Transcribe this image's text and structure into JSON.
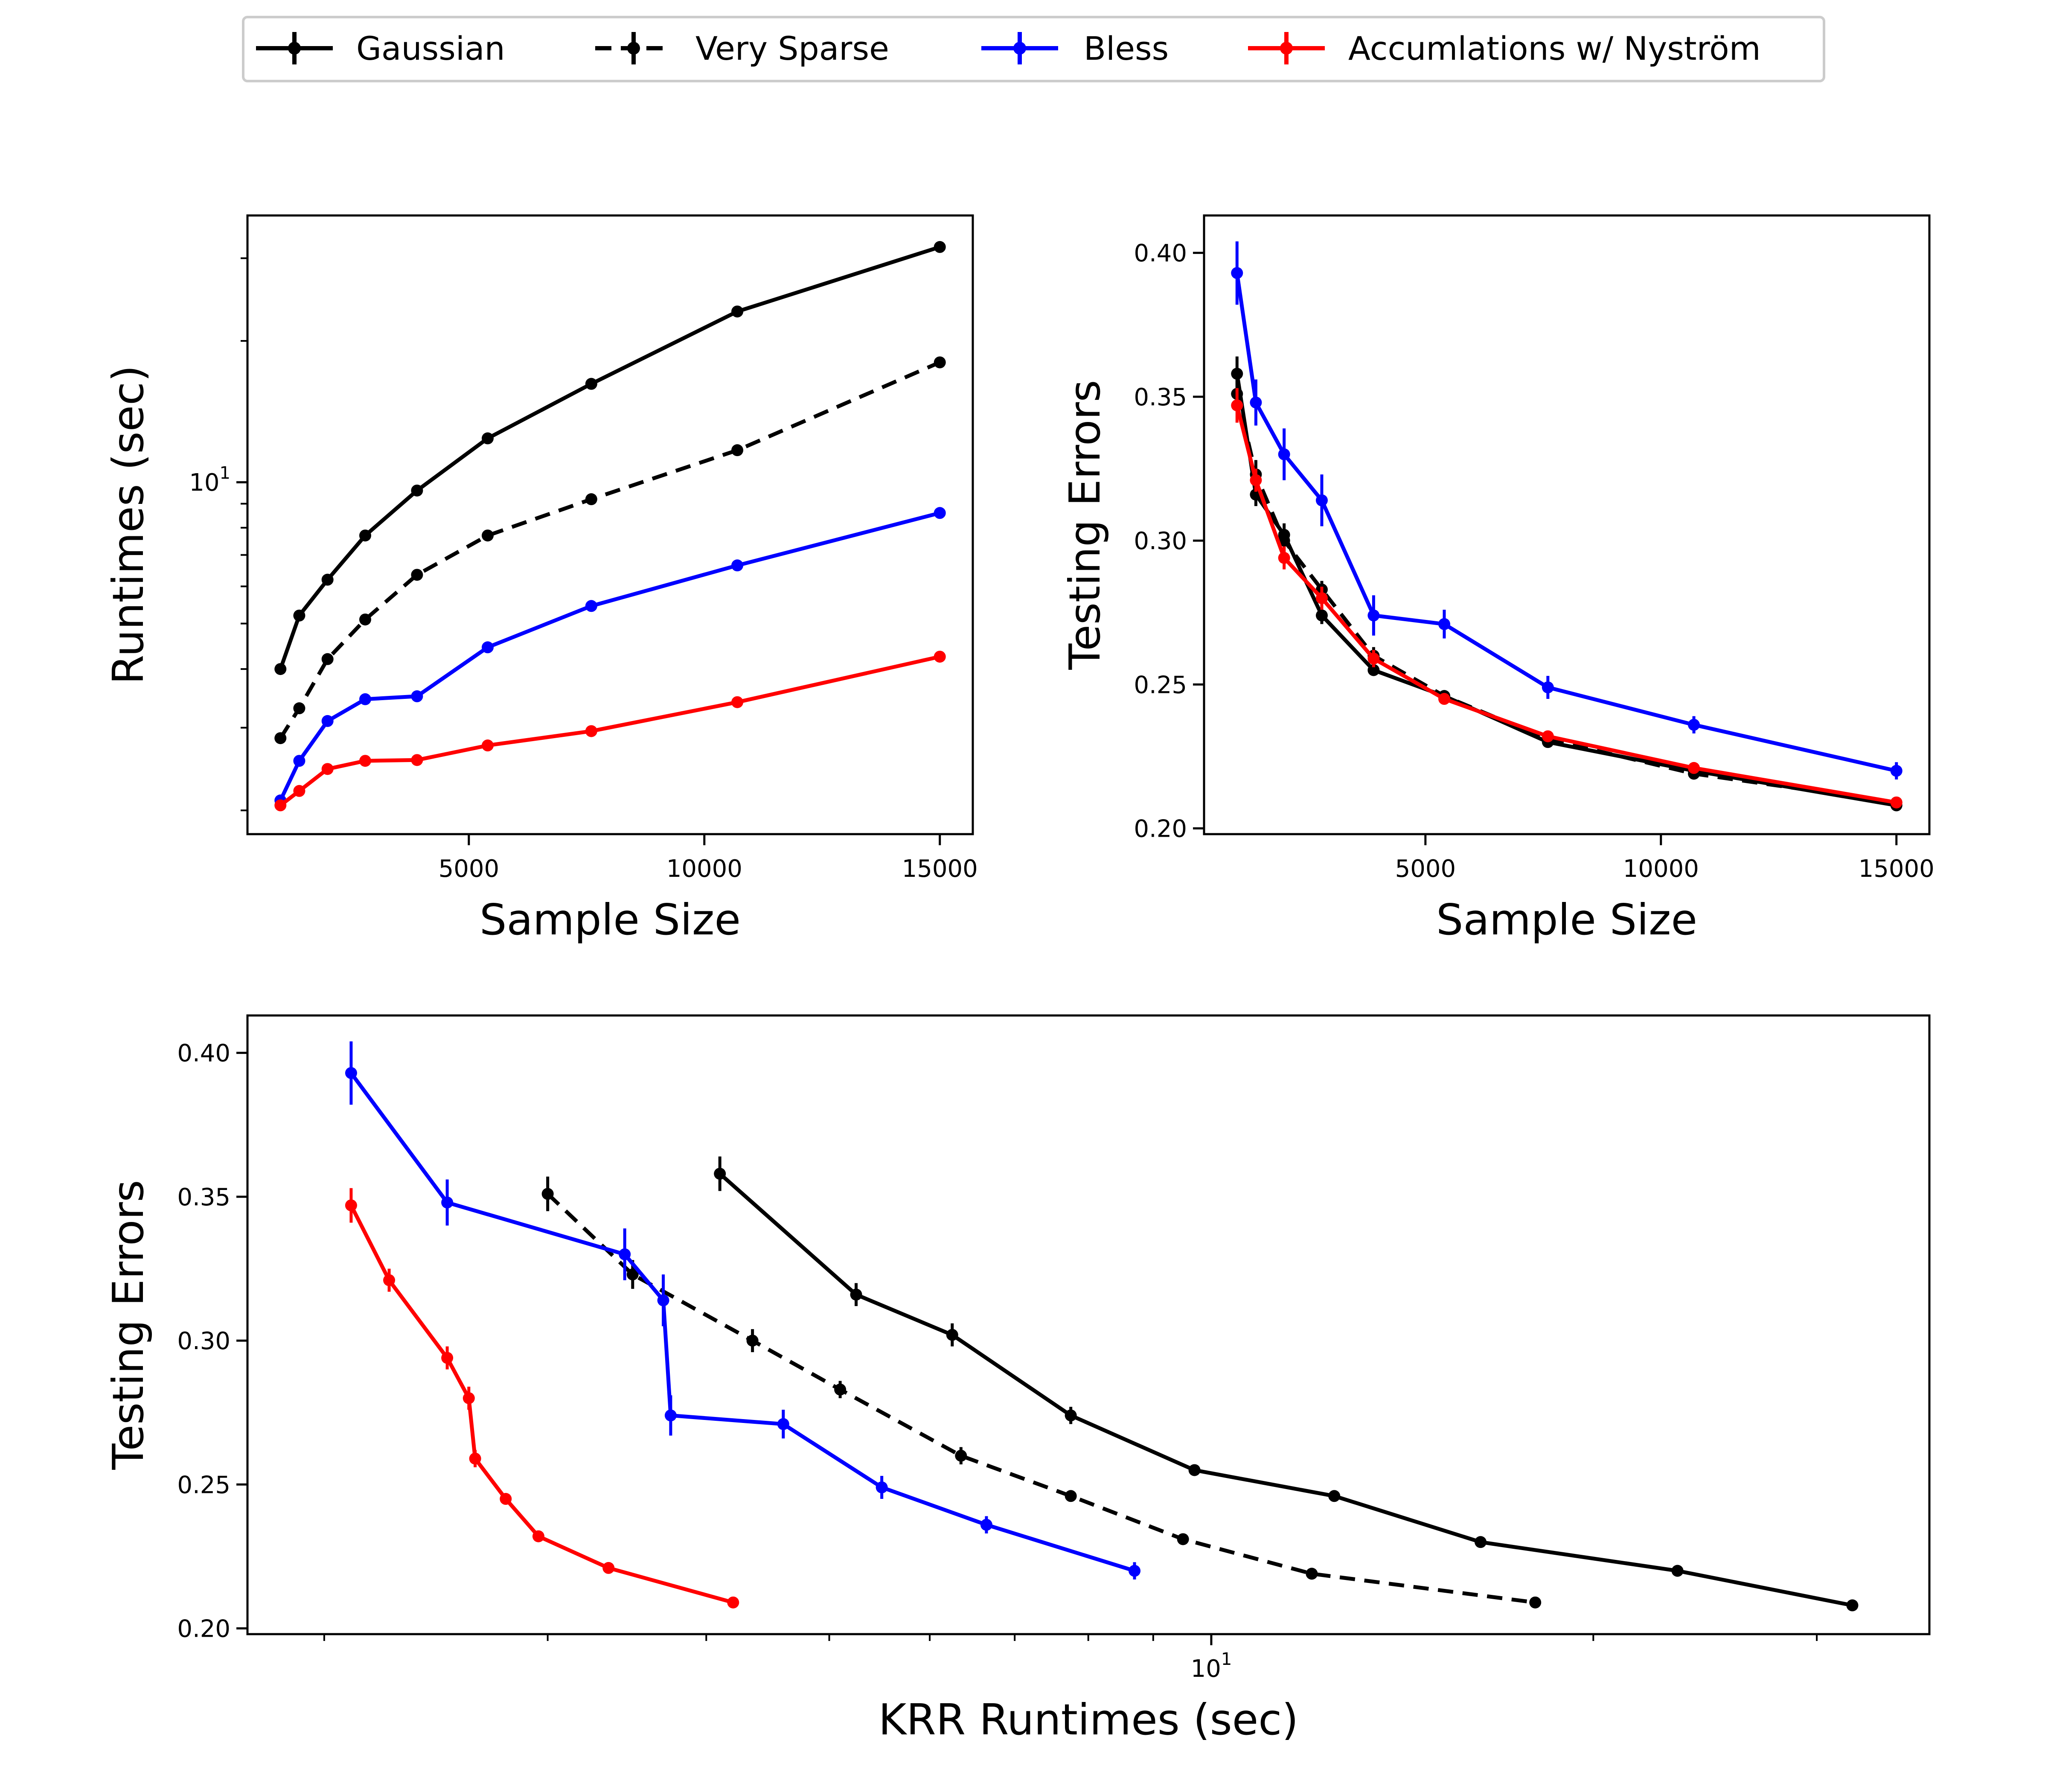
{
  "legend": {
    "location": "top-center",
    "entries": [
      {
        "label": "Gaussian",
        "color": "#000000",
        "dashed": false
      },
      {
        "label": "Very Sparse",
        "color": "#000000",
        "dashed": true
      },
      {
        "label": "Bless",
        "color": "#0000ff",
        "dashed": false
      },
      {
        "label": "Accumlations w/ Nyström",
        "color": "#ff0000",
        "dashed": false
      }
    ]
  },
  "chart_data": [
    {
      "id": "runtime_vs_size",
      "type": "line",
      "xlabel": "Sample Size",
      "ylabel": "Runtimes (sec)",
      "yscale": "log",
      "xlim": [
        300,
        15700
      ],
      "ylim": [
        1.78,
        37
      ],
      "xticks": [
        5000,
        10000,
        15000
      ],
      "xtick_labels": [
        "5000",
        "10000",
        "15000"
      ],
      "yticks": [
        10
      ],
      "ytick_labels": [
        "10"
      ],
      "ytick_superscripts": [
        "1"
      ],
      "series": [
        {
          "name": "Gaussian",
          "color": "#000000",
          "dashed": false,
          "x": [
            1000,
            1400,
            2000,
            2800,
            3900,
            5400,
            7600,
            10700,
            15000
          ],
          "y": [
            4.0,
            5.2,
            6.2,
            7.7,
            9.6,
            12.4,
            16.2,
            23.1,
            31.7
          ]
        },
        {
          "name": "Very Sparse",
          "color": "#000000",
          "dashed": true,
          "x": [
            1000,
            1400,
            2000,
            2800,
            3900,
            5400,
            7600,
            10700,
            15000
          ],
          "y": [
            2.85,
            3.3,
            4.2,
            5.1,
            6.35,
            7.7,
            9.2,
            11.7,
            18.0
          ]
        },
        {
          "name": "Bless",
          "color": "#0000ff",
          "dashed": false,
          "x": [
            1000,
            1400,
            2000,
            2800,
            3900,
            5400,
            7600,
            10700,
            15000
          ],
          "y": [
            2.1,
            2.55,
            3.1,
            3.45,
            3.5,
            4.45,
            5.45,
            6.65,
            8.6
          ]
        },
        {
          "name": "Accumlations w/ Nyström",
          "color": "#ff0000",
          "dashed": false,
          "x": [
            1000,
            1400,
            2000,
            2800,
            3900,
            5400,
            7600,
            10700,
            15000
          ],
          "y": [
            2.05,
            2.2,
            2.45,
            2.55,
            2.56,
            2.75,
            2.95,
            3.4,
            4.25
          ]
        }
      ]
    },
    {
      "id": "error_vs_size",
      "type": "line",
      "xlabel": "Sample Size",
      "ylabel": "Testing Errors",
      "xlim": [
        300,
        15700
      ],
      "ylim": [
        0.198,
        0.413
      ],
      "xticks": [
        5000,
        10000,
        15000
      ],
      "xtick_labels": [
        "5000",
        "10000",
        "15000"
      ],
      "yticks": [
        0.2,
        0.25,
        0.3,
        0.35,
        0.4
      ],
      "ytick_labels": [
        "0.20",
        "0.25",
        "0.30",
        "0.35",
        "0.40"
      ],
      "series": [
        {
          "name": "Gaussian",
          "color": "#000000",
          "dashed": false,
          "x": [
            1000,
            1400,
            2000,
            2800,
            3900,
            5400,
            7600,
            10700,
            15000
          ],
          "y": [
            0.358,
            0.316,
            0.302,
            0.274,
            0.255,
            0.246,
            0.23,
            0.22,
            0.208
          ],
          "yerr": [
            0.006,
            0.004,
            0.004,
            0.003,
            0.002,
            0.002,
            0.002,
            0.002,
            0.002
          ]
        },
        {
          "name": "Very Sparse",
          "color": "#000000",
          "dashed": true,
          "x": [
            1000,
            1400,
            2000,
            2800,
            3900,
            5400,
            7600,
            10700,
            15000
          ],
          "y": [
            0.351,
            0.323,
            0.3,
            0.283,
            0.26,
            0.246,
            0.231,
            0.219,
            0.209
          ],
          "yerr": [
            0.006,
            0.005,
            0.004,
            0.003,
            0.003,
            0.002,
            0.002,
            0.002,
            0.002
          ]
        },
        {
          "name": "Bless",
          "color": "#0000ff",
          "dashed": false,
          "x": [
            1000,
            1400,
            2000,
            2800,
            3900,
            5400,
            7600,
            10700,
            15000
          ],
          "y": [
            0.393,
            0.348,
            0.33,
            0.314,
            0.274,
            0.271,
            0.249,
            0.236,
            0.22
          ],
          "yerr": [
            0.011,
            0.008,
            0.009,
            0.009,
            0.007,
            0.005,
            0.004,
            0.003,
            0.003
          ]
        },
        {
          "name": "Accumlations w/ Nyström",
          "color": "#ff0000",
          "dashed": false,
          "x": [
            1000,
            1400,
            2000,
            2800,
            3900,
            5400,
            7600,
            10700,
            15000
          ],
          "y": [
            0.347,
            0.321,
            0.294,
            0.28,
            0.259,
            0.245,
            0.232,
            0.221,
            0.209
          ],
          "yerr": [
            0.006,
            0.004,
            0.004,
            0.004,
            0.003,
            0.002,
            0.002,
            0.002,
            0.002
          ]
        }
      ]
    },
    {
      "id": "error_vs_runtime",
      "type": "line",
      "xlabel": "KRR Runtimes (sec)",
      "ylabel": "Testing Errors",
      "xscale": "log",
      "xlim": [
        1.74,
        36.8
      ],
      "ylim": [
        0.198,
        0.413
      ],
      "xticks": [
        10
      ],
      "xtick_labels": [
        "10"
      ],
      "xtick_superscripts": [
        "1"
      ],
      "yticks": [
        0.2,
        0.25,
        0.3,
        0.35,
        0.4
      ],
      "ytick_labels": [
        "0.20",
        "0.25",
        "0.30",
        "0.35",
        "0.40"
      ],
      "series": [
        {
          "name": "Gaussian",
          "color": "#000000",
          "dashed": false,
          "x": [
            4.1,
            5.25,
            6.25,
            7.75,
            9.7,
            12.5,
            16.3,
            23.3,
            32.0
          ],
          "y": [
            0.358,
            0.316,
            0.302,
            0.274,
            0.255,
            0.246,
            0.23,
            0.22,
            0.208
          ],
          "yerr": [
            0.006,
            0.004,
            0.004,
            0.003,
            0.002,
            0.002,
            0.002,
            0.002,
            0.002
          ]
        },
        {
          "name": "Very Sparse",
          "color": "#000000",
          "dashed": true,
          "x": [
            3.0,
            3.5,
            4.35,
            5.1,
            6.35,
            7.75,
            9.5,
            12.0,
            18.0
          ],
          "y": [
            0.351,
            0.323,
            0.3,
            0.283,
            0.26,
            0.246,
            0.231,
            0.219,
            0.209
          ],
          "yerr": [
            0.006,
            0.005,
            0.004,
            0.003,
            0.003,
            0.002,
            0.002,
            0.002,
            0.002
          ]
        },
        {
          "name": "Bless",
          "color": "#0000ff",
          "dashed": false,
          "x": [
            2.1,
            2.5,
            3.45,
            3.7,
            3.75,
            4.6,
            5.5,
            6.65,
            8.7
          ],
          "y": [
            0.393,
            0.348,
            0.33,
            0.314,
            0.274,
            0.271,
            0.249,
            0.236,
            0.22
          ],
          "yerr": [
            0.011,
            0.008,
            0.009,
            0.009,
            0.007,
            0.005,
            0.004,
            0.003,
            0.003
          ]
        },
        {
          "name": "Accumlations w/ Nyström",
          "color": "#ff0000",
          "dashed": false,
          "x": [
            2.1,
            2.25,
            2.5,
            2.6,
            2.63,
            2.78,
            2.95,
            3.35,
            4.2
          ],
          "y": [
            0.347,
            0.321,
            0.294,
            0.28,
            0.259,
            0.245,
            0.232,
            0.221,
            0.209
          ],
          "yerr": [
            0.006,
            0.004,
            0.004,
            0.004,
            0.003,
            0.002,
            0.002,
            0.002,
            0.002
          ]
        }
      ]
    }
  ]
}
